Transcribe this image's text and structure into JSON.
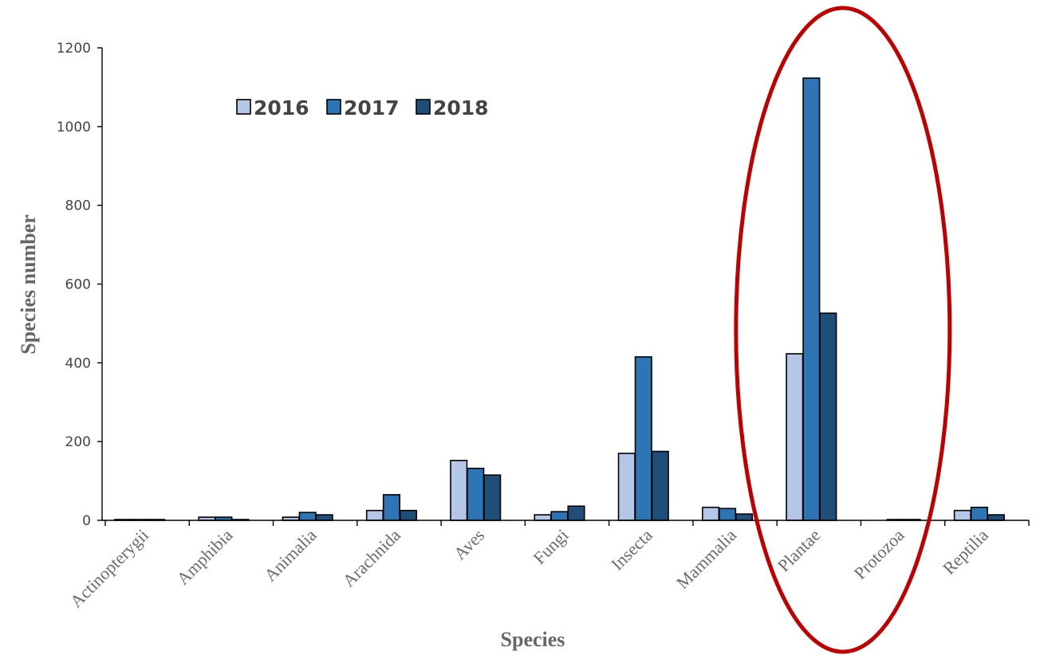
{
  "chart_data": {
    "type": "bar",
    "xlabel": "Species",
    "ylabel": "Species number",
    "ylim": [
      0,
      1200
    ],
    "yticks": [
      0,
      200,
      400,
      600,
      800,
      1000,
      1200
    ],
    "grid": false,
    "legend_position": "top-left",
    "categories": [
      "Actinopterygii",
      "Amphibia",
      "Animalia",
      "Arachnida",
      "Aves",
      "Fungi",
      "Insecta",
      "Mammalia",
      "Plantae",
      "Protozoa",
      "Reptilia"
    ],
    "series": [
      {
        "name": "2016",
        "color": "#b4c7e7",
        "values": [
          2,
          8,
          8,
          25,
          152,
          14,
          170,
          33,
          423,
          0,
          25
        ]
      },
      {
        "name": "2017",
        "color": "#2e75b6",
        "values": [
          2,
          8,
          20,
          65,
          132,
          22,
          415,
          30,
          1123,
          2,
          33
        ]
      },
      {
        "name": "2018",
        "color": "#1f4e79",
        "values": [
          2,
          2,
          14,
          25,
          115,
          36,
          175,
          16,
          526,
          2,
          14
        ]
      }
    ],
    "annotations": [
      {
        "type": "ellipse",
        "color": "#c00000",
        "highlights": "Plantae"
      }
    ]
  }
}
